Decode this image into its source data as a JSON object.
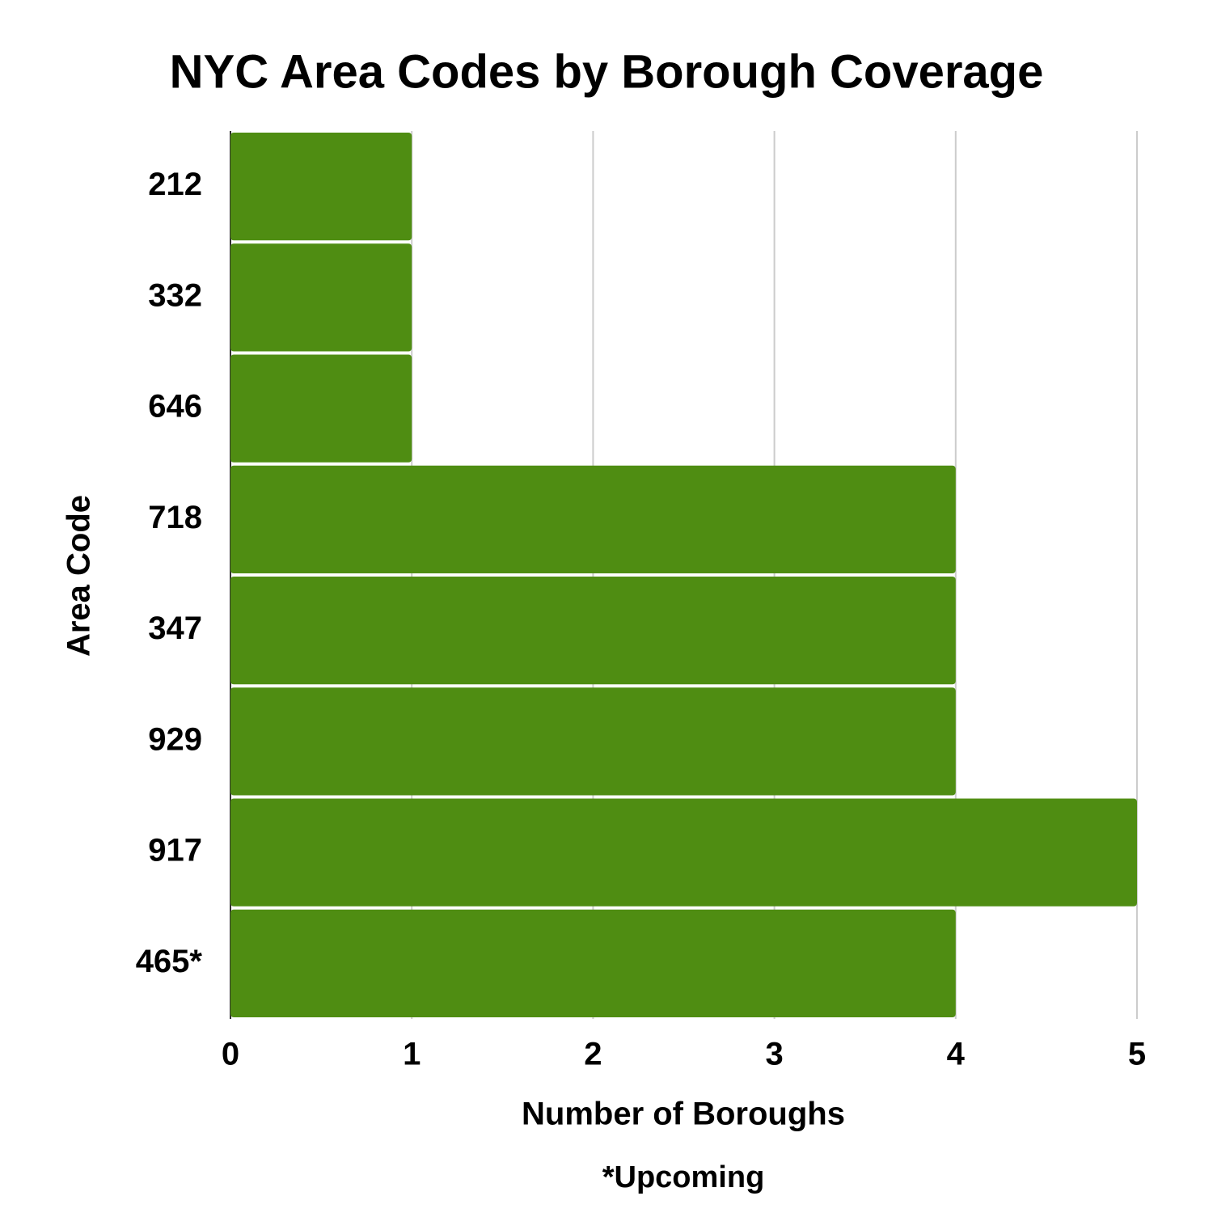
{
  "chart_data": {
    "type": "barh",
    "title": "NYC Area Codes by Borough Coverage",
    "categories": [
      "212",
      "332",
      "646",
      "718",
      "347",
      "929",
      "917",
      "465*"
    ],
    "values": [
      1,
      1,
      1,
      4,
      4,
      4,
      5,
      4
    ],
    "color": "#4f8d12",
    "xlim": [
      0,
      5
    ],
    "xticks": [
      0,
      1,
      2,
      3,
      4,
      5
    ],
    "grid": true,
    "xlabel": "Number of Boroughs",
    "ylabel": "Area Code",
    "annotation": "*Upcoming"
  }
}
